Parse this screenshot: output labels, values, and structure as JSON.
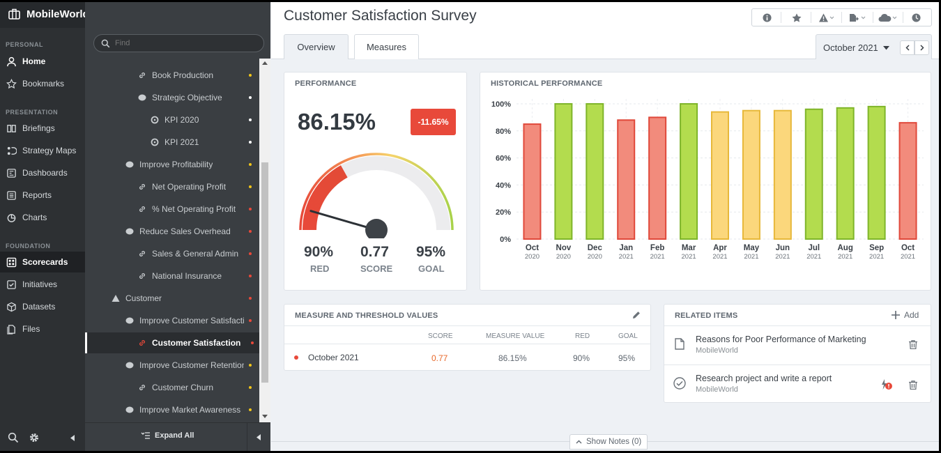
{
  "app": {
    "name": "MobileWorld",
    "collapse_icon": "chevron-left-icon"
  },
  "search": {
    "placeholder": "Find"
  },
  "nav": {
    "sections": [
      "PERSONAL",
      "PRESENTATION",
      "FOUNDATION"
    ],
    "items": [
      {
        "label": "Home",
        "icon": "user-icon"
      },
      {
        "label": "Bookmarks",
        "icon": "star-icon"
      },
      {
        "label": "Briefings",
        "icon": "book-icon"
      },
      {
        "label": "Strategy Maps",
        "icon": "strategy-map-icon"
      },
      {
        "label": "Dashboards",
        "icon": "dashboard-icon"
      },
      {
        "label": "Reports",
        "icon": "report-icon"
      },
      {
        "label": "Charts",
        "icon": "pie-chart-icon"
      },
      {
        "label": "Scorecards",
        "icon": "scorecard-icon"
      },
      {
        "label": "Initiatives",
        "icon": "checkbox-icon"
      },
      {
        "label": "Datasets",
        "icon": "cube-icon"
      },
      {
        "label": "Files",
        "icon": "files-icon"
      }
    ]
  },
  "tree": {
    "items": [
      {
        "label": "Book Production",
        "icon": "link-icon",
        "dot": "#f0c419"
      },
      {
        "label": "Strategic Objective",
        "icon": "objective-icon",
        "dot": "#ffffff"
      },
      {
        "label": "KPI 2020",
        "icon": "kpi-icon",
        "dot": "#ffffff"
      },
      {
        "label": "KPI 2021",
        "icon": "kpi-icon",
        "dot": "#ffffff"
      },
      {
        "label": "Improve Profitability",
        "icon": "objective-icon",
        "dot": "#f0c419"
      },
      {
        "label": "Net Operating Profit",
        "icon": "link-icon",
        "dot": "#f0c419"
      },
      {
        "label": "% Net Operating Profit",
        "icon": "link-icon",
        "dot": "#e8493a"
      },
      {
        "label": "Reduce Sales Overhead",
        "icon": "objective-icon",
        "dot": "#e8493a"
      },
      {
        "label": "Sales & General Admin",
        "icon": "link-icon",
        "dot": "#e8493a"
      },
      {
        "label": "National Insurance",
        "icon": "link-icon",
        "dot": "#e8493a"
      },
      {
        "label": "Customer",
        "icon": "perspective-icon",
        "dot": "#e8493a"
      },
      {
        "label": "Improve Customer Satisfaction",
        "icon": "objective-icon",
        "dot": "#e8493a"
      },
      {
        "label": "Customer Satisfaction",
        "icon": "link-icon",
        "dot": "#e8493a"
      },
      {
        "label": "Improve Customer Retention",
        "icon": "objective-icon",
        "dot": "#f0c419"
      },
      {
        "label": "Customer Churn",
        "icon": "link-icon",
        "dot": "#f0c419"
      },
      {
        "label": "Improve Market Awareness",
        "icon": "objective-icon",
        "dot": "#f0c419"
      }
    ],
    "expand_all": "Expand All"
  },
  "header": {
    "title": "Customer Satisfaction Survey",
    "toolbar_icons": [
      "info-icon",
      "star-icon",
      "alert-icon",
      "export-icon",
      "cloud-icon",
      "history-icon"
    ],
    "tabs": [
      "Overview",
      "Measures"
    ],
    "period": "October 2021"
  },
  "performance": {
    "heading": "PERFORMANCE",
    "value": "86.15%",
    "change": "-11.65%",
    "red_value": "90%",
    "red_label": "RED",
    "score_value": "0.77",
    "score_label": "SCORE",
    "goal_value": "95%",
    "goal_label": "GOAL",
    "gauge_fraction": 0.34,
    "colors": {
      "red": "#e8493a",
      "yellow": "#f5d36b",
      "green": "#a8d24a"
    }
  },
  "historical": {
    "heading": "HISTORICAL PERFORMANCE"
  },
  "chart_data": {
    "type": "bar",
    "title": "HISTORICAL PERFORMANCE",
    "categories": [
      "Oct",
      "Nov",
      "Dec",
      "Jan",
      "Feb",
      "Mar",
      "Apr",
      "May",
      "Jun",
      "Jul",
      "Aug",
      "Sep",
      "Oct"
    ],
    "years": [
      "2020",
      "2020",
      "2020",
      "2021",
      "2021",
      "2021",
      "2021",
      "2021",
      "2021",
      "2021",
      "2021",
      "2021",
      "2021"
    ],
    "values": [
      85,
      100,
      100,
      88,
      90,
      100,
      94,
      95,
      95,
      96,
      97,
      98,
      86
    ],
    "statuses": [
      "red",
      "green",
      "green",
      "red",
      "red",
      "green",
      "yellow",
      "yellow",
      "yellow",
      "green",
      "green",
      "green",
      "red"
    ],
    "status_colors": {
      "red": "#f28b7c",
      "green": "#b3dc4e",
      "yellow": "#fbd77c"
    },
    "status_strokes": {
      "red": "#e0483a",
      "green": "#7fb52a",
      "yellow": "#e7b83a"
    },
    "ylim": [
      0,
      100
    ],
    "yticks": [
      "0%",
      "20%",
      "40%",
      "60%",
      "80%",
      "100%"
    ],
    "grid": true
  },
  "measures": {
    "heading": "MEASURE AND THRESHOLD VALUES",
    "columns": [
      "SCORE",
      "MEASURE VALUE",
      "RED",
      "GOAL"
    ],
    "rows": [
      {
        "period": "October 2021",
        "score": "0.77",
        "value": "86.15%",
        "red": "90%",
        "goal": "95%"
      }
    ]
  },
  "related": {
    "heading": "RELATED ITEMS",
    "add_label": "Add",
    "items": [
      {
        "title": "Reasons for Poor Performance of Marketing",
        "subtitle": "MobileWorld",
        "icon": "document-icon"
      },
      {
        "title": "Research project and write a report",
        "subtitle": "MobileWorld",
        "icon": "check-circle-icon"
      }
    ]
  },
  "footer": {
    "show_notes": "Show Notes (0)"
  }
}
